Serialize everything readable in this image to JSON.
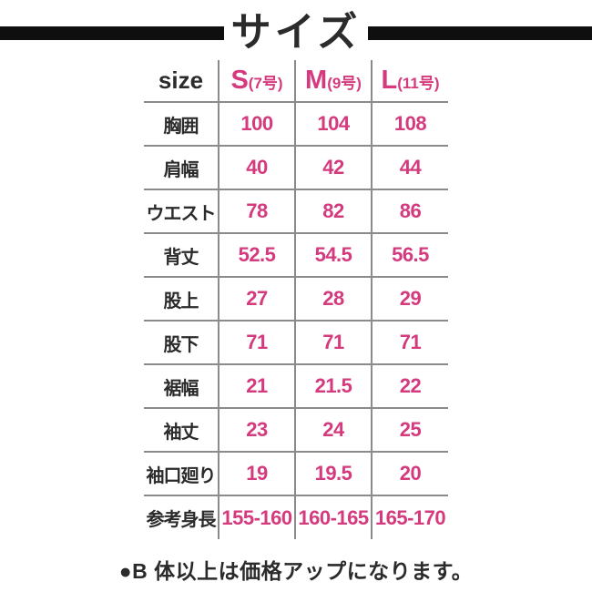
{
  "title": "サイズ",
  "note": "●B 体以上は価格アップになります。",
  "colors": {
    "accent_pink": "#d43a7d",
    "text_black": "#2b2b2b",
    "line_gray": "#8a8a8a",
    "band_black": "#0f0f0f"
  },
  "chart_data": {
    "type": "table",
    "title": "サイズ",
    "header": {
      "label": "size",
      "columns": [
        {
          "size": "S",
          "detail": "(7号)"
        },
        {
          "size": "M",
          "detail": "(9号)"
        },
        {
          "size": "L",
          "detail": "(11号)"
        }
      ]
    },
    "rows": [
      {
        "label": "胸囲",
        "values": [
          "100",
          "104",
          "108"
        ]
      },
      {
        "label": "肩幅",
        "values": [
          "40",
          "42",
          "44"
        ]
      },
      {
        "label": "ウエスト",
        "values": [
          "78",
          "82",
          "86"
        ]
      },
      {
        "label": "背丈",
        "values": [
          "52.5",
          "54.5",
          "56.5"
        ]
      },
      {
        "label": "股上",
        "values": [
          "27",
          "28",
          "29"
        ]
      },
      {
        "label": "股下",
        "values": [
          "71",
          "71",
          "71"
        ]
      },
      {
        "label": "裾幅",
        "values": [
          "21",
          "21.5",
          "22"
        ]
      },
      {
        "label": "袖丈",
        "values": [
          "23",
          "24",
          "25"
        ]
      },
      {
        "label": "袖口廻り",
        "values": [
          "19",
          "19.5",
          "20"
        ]
      },
      {
        "label": "参考身長",
        "values": [
          "155-160",
          "160-165",
          "165-170"
        ]
      }
    ]
  }
}
